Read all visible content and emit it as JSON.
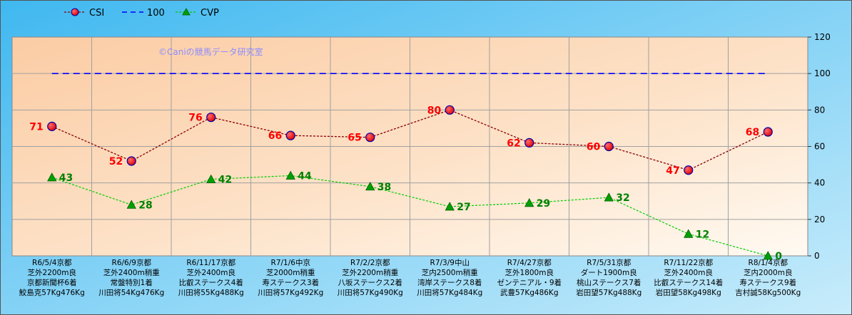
{
  "chart_data": {
    "type": "line",
    "watermark": "©Caniの競馬データ研究室",
    "ylim": [
      0,
      120
    ],
    "yticks": [
      0,
      20,
      40,
      60,
      80,
      100,
      120
    ],
    "grid": true,
    "legend_position": "top-left",
    "categories": [
      [
        "R6/5/4京都",
        "芝外2200m良",
        "京都新聞杯6着",
        "鮫島克57Kg476Kg"
      ],
      [
        "R6/6/9京都",
        "芝外2400m稍重",
        "常盤特別1着",
        "川田将54Kg476Kg"
      ],
      [
        "R6/11/17京都",
        "芝外2400m良",
        "比叡ステークス4着",
        "川田将55Kg488Kg"
      ],
      [
        "R7/1/6中京",
        "芝2000m稍重",
        "寿ステークス3着",
        "川田将57Kg492Kg"
      ],
      [
        "R7/2/2京都",
        "芝外2200m稍重",
        "八坂ステークス2着",
        "川田将57Kg490Kg"
      ],
      [
        "R7/3/9中山",
        "芝内2500m稍重",
        "湾岸ステークス8着",
        "川田将57Kg484Kg"
      ],
      [
        "R7/4/27京都",
        "芝外1800m良",
        "ゼンテニアル・9着",
        "武豊57Kg486Kg"
      ],
      [
        "R7/5/31京都",
        "ダート1900m良",
        "桃山ステークス7着",
        "岩田望57Kg488Kg"
      ],
      [
        "R7/11/22京都",
        "芝外2400m良",
        "比叡ステークス14着",
        "岩田望58Kg498Kg"
      ],
      [
        "R8/1/4京都",
        "芝内2000m良",
        "寿ステークス9着",
        "吉村誠58Kg500Kg"
      ]
    ],
    "series": [
      {
        "name": "CSI",
        "values": [
          71,
          52,
          76,
          66,
          65,
          80,
          62,
          60,
          47,
          68
        ],
        "color": "#8b0000",
        "marker": "#ff0000"
      },
      {
        "name": "100",
        "values": [
          100,
          100,
          100,
          100,
          100,
          100,
          100,
          100,
          100,
          100
        ],
        "color": "#0000ff"
      },
      {
        "name": "CVP",
        "values": [
          43,
          28,
          42,
          44,
          38,
          27,
          29,
          32,
          12,
          0
        ],
        "color": "#00cc00",
        "marker": "#00a000"
      }
    ]
  }
}
